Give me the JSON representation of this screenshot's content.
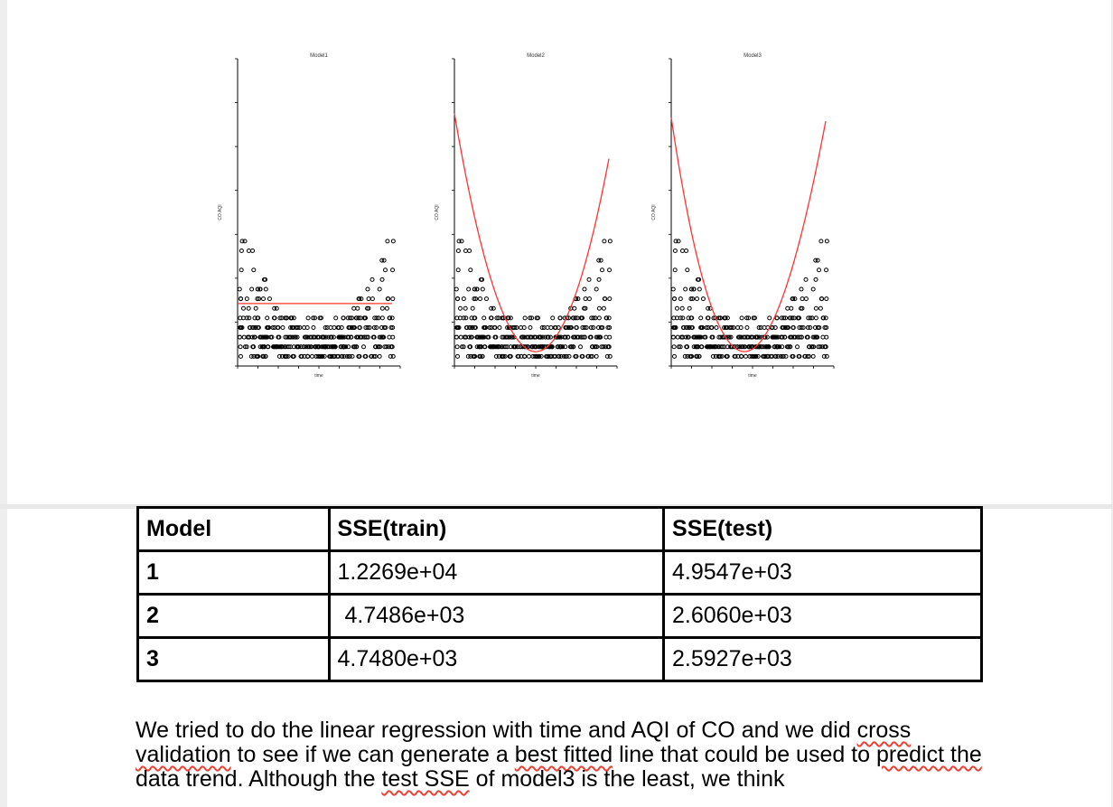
{
  "chart_data": [
    {
      "type": "scatter",
      "title": "Model1",
      "xlabel": "time",
      "ylabel": "CO AQI",
      "xlim": [
        0,
        4000
      ],
      "ylim": [
        0,
        32
      ],
      "fit": "constant",
      "fit_color": "#ff3333"
    },
    {
      "type": "scatter",
      "title": "Model2",
      "xlabel": "time",
      "ylabel": "CO AQI",
      "xlim": [
        0,
        4000
      ],
      "ylim": [
        0,
        32
      ],
      "fit": "quadratic",
      "fit_color": "#ff3333"
    },
    {
      "type": "scatter",
      "title": "Model3",
      "xlabel": "time",
      "ylabel": "CO AQI",
      "xlim": [
        0,
        4000
      ],
      "ylim": [
        0,
        32
      ],
      "fit": "cubic",
      "fit_color": "#ff3333"
    }
  ],
  "table": {
    "headers": [
      "Model",
      "SSE(train)",
      "SSE(test)"
    ],
    "rows": [
      {
        "model": "1",
        "train": "1.2269e+04",
        "test": "4.9547e+03"
      },
      {
        "model": "2",
        "train": "4.7486e+03",
        "test": "2.6060e+03"
      },
      {
        "model": "3",
        "train": "4.7480e+03",
        "test": "2.5927e+03"
      }
    ]
  },
  "paragraph": {
    "s1": "We tried to do the linear regression with time and AQI of CO and we did ",
    "w1": "cross",
    "s2": " ",
    "w2": "validation",
    "s3": " to see if we can generate a ",
    "w3": "best fitted",
    "s4": " line that could be used to ",
    "w4": "predict the",
    "s5": " data trend. Although the ",
    "w5": "test SSE",
    "s6": " of model3 is the least, we think"
  }
}
